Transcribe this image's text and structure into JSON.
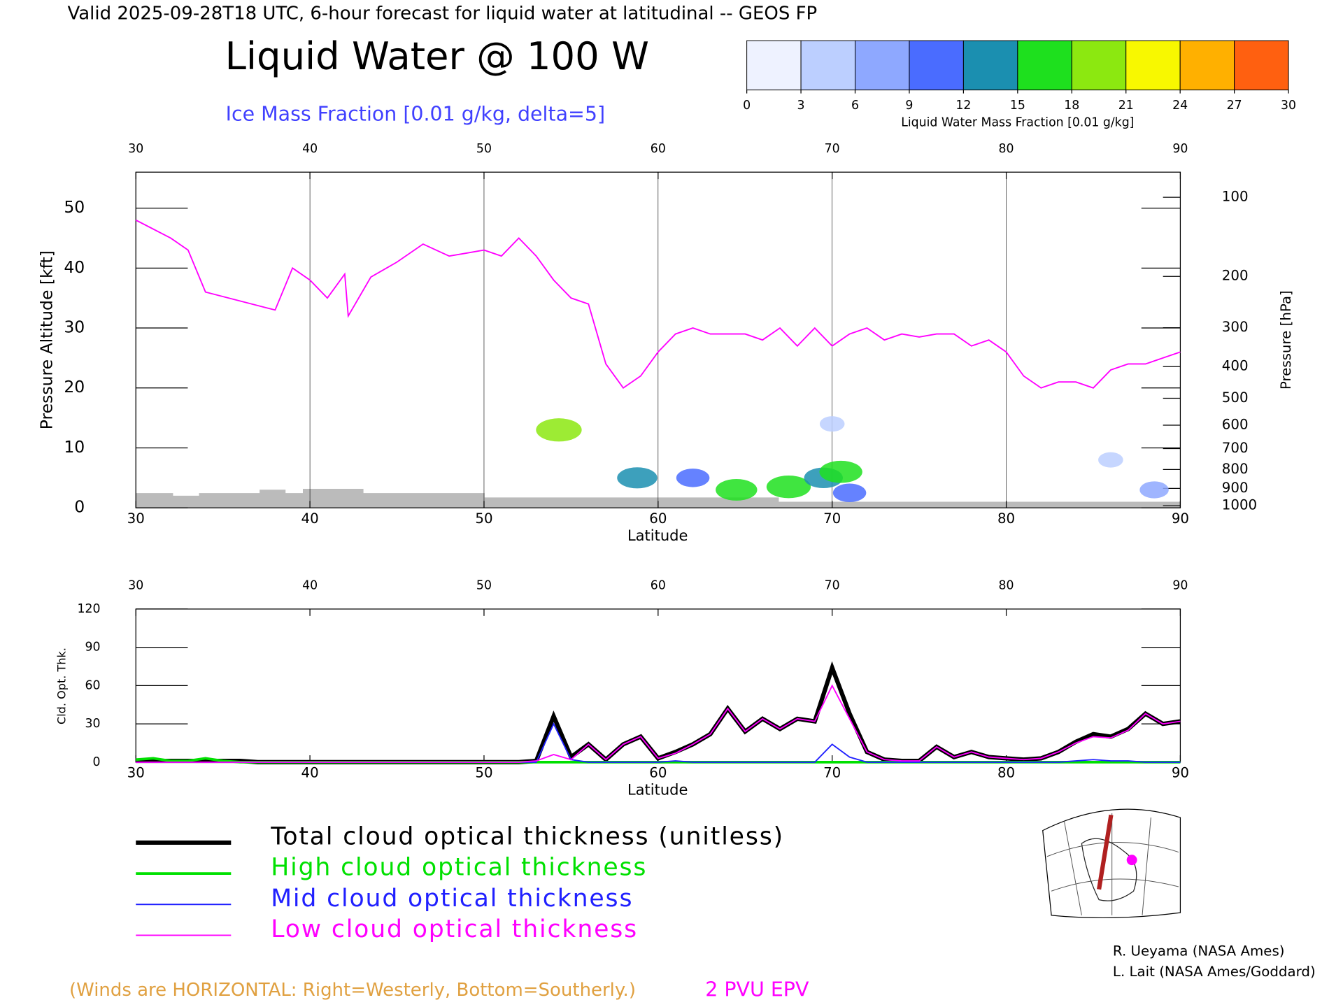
{
  "header": {
    "valid": "Valid 2025-09-28T18 UTC, 6-hour forecast for liquid water at latitudinal -- GEOS FP",
    "title": "Liquid Water @ 100 W",
    "subtitle": "Ice Mass Fraction [0.01 g/kg, delta=5]"
  },
  "colorbar": {
    "label": "Liquid Water Mass Fraction [0.01 g/kg]",
    "ticks": [
      0,
      3,
      6,
      9,
      12,
      15,
      18,
      21,
      24,
      27,
      30
    ],
    "colors": [
      "#eef2ff",
      "#bccfff",
      "#8ea8ff",
      "#4a6cff",
      "#1b8fb0",
      "#1ee01e",
      "#8ce810",
      "#f8f800",
      "#ffb000",
      "#ff6010"
    ]
  },
  "chart_data": [
    {
      "type": "section",
      "xlabel": "Latitude",
      "ylabel": "Pressure Altitude [kft]",
      "y2label": "Pressure [hPa]",
      "xlim": [
        30,
        90
      ],
      "xticks": [
        30,
        40,
        50,
        60,
        70,
        80,
        90
      ],
      "ylim": [
        0,
        56
      ],
      "yticks": [
        0,
        10,
        20,
        30,
        40,
        50
      ],
      "y2_scale": "pressure-altitude",
      "y2ticks": [
        100,
        200,
        300,
        400,
        500,
        600,
        700,
        800,
        900,
        1000
      ],
      "series": [
        {
          "name": "2 PVU EPV",
          "color": "#ff00ff",
          "x": [
            30,
            32,
            33,
            34,
            36,
            38,
            39,
            40,
            41,
            42,
            42.2,
            43.5,
            45,
            46.5,
            48,
            49,
            50,
            51,
            52,
            53,
            54,
            55,
            56,
            57,
            58,
            59,
            60,
            61,
            62,
            63,
            64,
            65,
            66,
            67,
            68,
            69,
            70,
            71,
            72,
            73,
            74,
            75,
            76,
            77,
            78,
            79,
            80,
            81,
            82,
            83,
            84,
            85,
            86,
            87,
            88,
            89,
            90
          ],
          "values": [
            48,
            45,
            43,
            36,
            34.5,
            33,
            40,
            38,
            35,
            39,
            32,
            38.5,
            41,
            44,
            42,
            42.5,
            43,
            42,
            45,
            42,
            38,
            35,
            34,
            24,
            20,
            22,
            26,
            29,
            30,
            29,
            29,
            29,
            28,
            30,
            27,
            30,
            27,
            29,
            30,
            28,
            29,
            28.5,
            29,
            29,
            27,
            28,
            26,
            22,
            20,
            21,
            21,
            20,
            23,
            24,
            24,
            25,
            26
          ]
        }
      ],
      "cells": {
        "x": [
          54.3,
          58.8,
          62,
          64.5,
          67.5,
          69.5,
          70.5,
          71,
          70,
          86,
          88.5
        ],
        "y": [
          13,
          5,
          5,
          3,
          3.5,
          5,
          6,
          2.5,
          14,
          8,
          3
        ],
        "values": [
          18,
          14,
          9,
          15,
          17,
          13,
          16,
          9,
          3,
          3,
          6
        ]
      }
    },
    {
      "type": "line",
      "xlabel": "Latitude",
      "ylabel": "Cld. Opt. Thk.",
      "xlim": [
        30,
        90
      ],
      "xticks": [
        30,
        40,
        50,
        60,
        70,
        80,
        90
      ],
      "ylim": [
        0,
        120
      ],
      "yticks": [
        0,
        30,
        60,
        90,
        120
      ],
      "x": [
        30,
        31,
        32,
        33,
        34,
        35,
        36,
        37,
        38,
        39,
        40,
        41,
        42,
        43,
        44,
        45,
        46,
        47,
        48,
        49,
        50,
        51,
        52,
        53,
        54,
        55,
        56,
        57,
        58,
        59,
        60,
        61,
        62,
        63,
        64,
        65,
        66,
        67,
        68,
        69,
        70,
        71,
        72,
        73,
        74,
        75,
        76,
        77,
        78,
        79,
        80,
        81,
        82,
        83,
        84,
        85,
        86,
        87,
        88,
        89,
        90
      ],
      "series": [
        {
          "name": "Total cloud optical thickness (unitless)",
          "color": "#000000",
          "width": 5,
          "values": [
            1,
            1,
            1,
            1,
            1,
            1,
            1,
            0,
            0,
            0,
            0,
            0,
            0,
            0,
            0,
            0,
            0,
            0,
            0,
            0,
            0,
            0,
            0,
            1,
            36,
            4,
            14,
            2,
            14,
            20,
            3,
            8,
            14,
            22,
            42,
            24,
            34,
            26,
            34,
            32,
            74,
            38,
            8,
            2,
            1,
            1,
            12,
            4,
            8,
            4,
            3,
            2,
            3,
            8,
            16,
            22,
            20,
            26,
            38,
            30,
            32
          ]
        },
        {
          "name": "High cloud optical thickness",
          "color": "#00e000",
          "width": 3,
          "values": [
            2,
            3,
            1,
            1,
            3,
            1,
            0,
            0,
            0,
            0,
            0,
            0,
            0,
            0,
            0,
            0,
            0,
            0,
            0,
            0,
            0,
            0,
            0,
            0,
            0,
            0,
            0,
            0,
            0,
            0,
            0,
            0,
            0,
            0,
            0,
            0,
            0,
            0,
            0,
            0,
            0,
            0,
            0,
            0,
            0,
            0,
            0,
            0,
            0,
            0,
            0,
            0,
            0,
            0,
            0,
            0,
            0,
            0,
            0,
            0,
            0
          ]
        },
        {
          "name": "Mid cloud optical thickness",
          "color": "#2020ff",
          "width": 1.5,
          "values": [
            0,
            0,
            0,
            0,
            0,
            0,
            0,
            0,
            0,
            0,
            0,
            0,
            0,
            0,
            0,
            0,
            0,
            0,
            0,
            0,
            0,
            0,
            0,
            0,
            30,
            2,
            0,
            0,
            0,
            0,
            0,
            1,
            0,
            0,
            0,
            0,
            0,
            0,
            0,
            0,
            14,
            4,
            0,
            0,
            0,
            0,
            0,
            0,
            0,
            0,
            0,
            0,
            0,
            0,
            1,
            2,
            1,
            1,
            0,
            0,
            0
          ]
        },
        {
          "name": "Low cloud optical thickness",
          "color": "#ff00ff",
          "width": 1.5,
          "values": [
            0,
            0,
            0,
            0,
            0,
            0,
            0,
            0,
            0,
            0,
            0,
            0,
            0,
            0,
            0,
            0,
            0,
            0,
            0,
            0,
            0,
            0,
            0,
            1,
            6,
            2,
            14,
            2,
            14,
            20,
            3,
            7,
            14,
            22,
            42,
            24,
            34,
            26,
            34,
            32,
            60,
            34,
            8,
            2,
            1,
            1,
            12,
            4,
            8,
            4,
            3,
            2,
            3,
            8,
            15,
            20,
            19,
            25,
            38,
            30,
            32
          ]
        }
      ]
    }
  ],
  "notes": {
    "winds": "(Winds are HORIZONTAL: Right=Westerly, Bottom=Southerly.)",
    "credit1": "R. Ueyama (NASA Ames)",
    "credit2": "L. Lait (NASA Ames/Goddard)"
  }
}
